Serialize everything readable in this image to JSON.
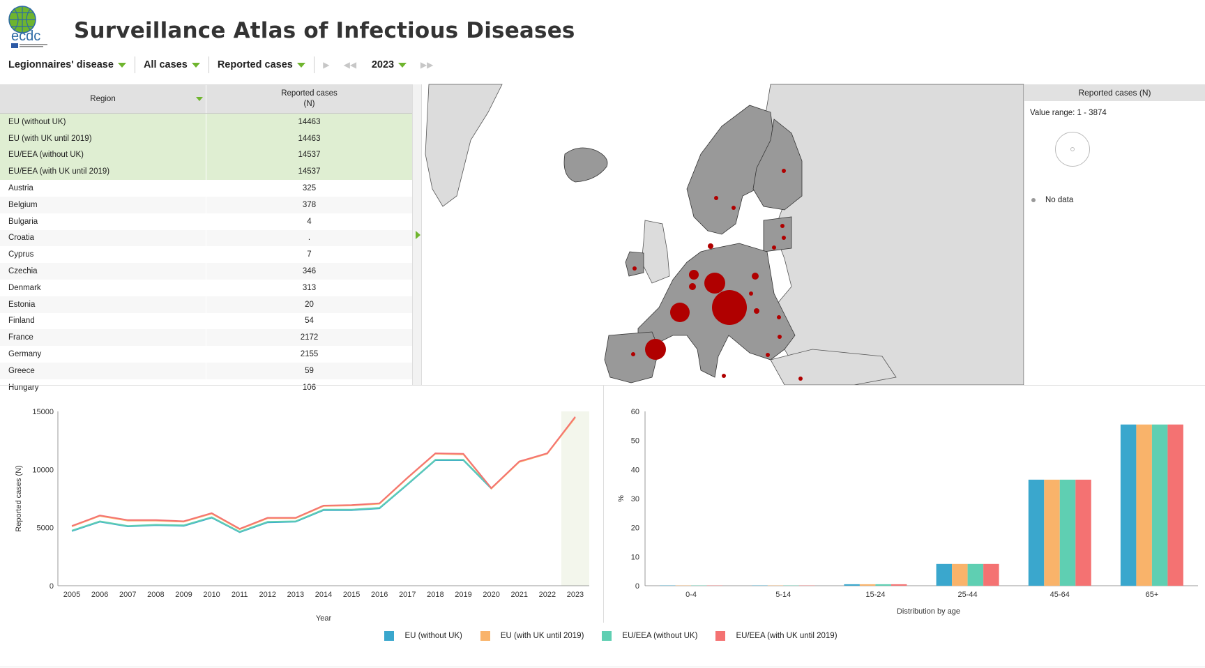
{
  "header": {
    "title": "Surveillance Atlas of Infectious Diseases",
    "logo_text": "ecdc"
  },
  "toolbar": {
    "disease": "Legionnaires' disease",
    "case_type": "All cases",
    "measure": "Reported cases",
    "year": "2023"
  },
  "table": {
    "col_region": "Region",
    "col_value_line1": "Reported cases",
    "col_value_line2": "(N)",
    "aggregates": [
      {
        "region": "EU (without UK)",
        "value": "14463"
      },
      {
        "region": "EU (with UK until 2019)",
        "value": "14463"
      },
      {
        "region": "EU/EEA (without UK)",
        "value": "14537"
      },
      {
        "region": "EU/EEA (with UK until 2019)",
        "value": "14537"
      }
    ],
    "rows": [
      {
        "region": "Austria",
        "value": "325"
      },
      {
        "region": "Belgium",
        "value": "378"
      },
      {
        "region": "Bulgaria",
        "value": "4"
      },
      {
        "region": "Croatia",
        "value": "."
      },
      {
        "region": "Cyprus",
        "value": "7"
      },
      {
        "region": "Czechia",
        "value": "346"
      },
      {
        "region": "Denmark",
        "value": "313"
      },
      {
        "region": "Estonia",
        "value": "20"
      },
      {
        "region": "Finland",
        "value": "54"
      },
      {
        "region": "France",
        "value": "2172"
      },
      {
        "region": "Germany",
        "value": "2155"
      },
      {
        "region": "Greece",
        "value": "59"
      },
      {
        "region": "Hungary",
        "value": "106"
      }
    ]
  },
  "map_legend": {
    "title": "Reported cases (N)",
    "range": "Value range: 1 - 3874",
    "no_data": "No data"
  },
  "colors": {
    "accent": "#6fb52e",
    "bubble": "#b00000",
    "country": "#999999",
    "land": "#dcdcdc"
  },
  "series_legend": [
    {
      "name": "EU (without UK)",
      "color": "#3aa7cd"
    },
    {
      "name": "EU (with UK until 2019)",
      "color": "#f9b36a"
    },
    {
      "name": "EU/EEA (without UK)",
      "color": "#5fcfb2"
    },
    {
      "name": "EU/EEA (with UK until 2019)",
      "color": "#f47272"
    }
  ],
  "chart_data": [
    {
      "type": "line",
      "xlabel": "Year",
      "ylabel": "Reported cases (N)",
      "x": [
        "2005",
        "2006",
        "2007",
        "2008",
        "2009",
        "2010",
        "2011",
        "2012",
        "2013",
        "2014",
        "2015",
        "2016",
        "2017",
        "2018",
        "2019",
        "2020",
        "2021",
        "2022",
        "2023"
      ],
      "ylim": [
        0,
        15000
      ],
      "yticks": [
        0,
        5000,
        10000,
        15000
      ],
      "highlight_x": "2023",
      "series": [
        {
          "name": "EU (without UK)",
          "values": [
            4700,
            5500,
            5100,
            5200,
            5150,
            5850,
            4600,
            5450,
            5500,
            6500,
            6500,
            6650,
            8700,
            10800,
            10800,
            8350,
            null,
            null,
            null
          ]
        },
        {
          "name": "EU (with UK until 2019)",
          "values": [
            5100,
            6000,
            5600,
            5600,
            5500,
            6200,
            4850,
            5800,
            5800,
            6850,
            6900,
            7050,
            9250,
            11350,
            11300,
            8350,
            10650,
            11350,
            14463
          ]
        },
        {
          "name": "EU/EEA (without UK)",
          "values": [
            4750,
            5550,
            5150,
            5250,
            5200,
            5900,
            4650,
            5500,
            5550,
            6550,
            6550,
            6700,
            8750,
            10850,
            10850,
            8400,
            null,
            null,
            null
          ]
        },
        {
          "name": "EU/EEA (with UK until 2019)",
          "values": [
            5150,
            6050,
            5650,
            5650,
            5550,
            6250,
            4900,
            5850,
            5850,
            6900,
            6950,
            7100,
            9300,
            11400,
            11350,
            8400,
            10700,
            11400,
            14537
          ]
        }
      ]
    },
    {
      "type": "bar",
      "xlabel": "Distribution by age",
      "ylabel": "%",
      "categories": [
        "0-4",
        "5-14",
        "15-24",
        "25-44",
        "45-64",
        "65+"
      ],
      "ylim": [
        0,
        60
      ],
      "yticks": [
        0,
        10,
        20,
        30,
        40,
        50,
        60
      ],
      "series": [
        {
          "name": "EU (without UK)",
          "values": [
            0.1,
            0.1,
            0.5,
            7.5,
            36.5,
            55.5
          ]
        },
        {
          "name": "EU (with UK until 2019)",
          "values": [
            0.1,
            0.1,
            0.5,
            7.5,
            36.5,
            55.5
          ]
        },
        {
          "name": "EU/EEA (without UK)",
          "values": [
            0.1,
            0.1,
            0.5,
            7.5,
            36.5,
            55.5
          ]
        },
        {
          "name": "EU/EEA (with UK until 2019)",
          "values": [
            0.1,
            0.1,
            0.5,
            7.5,
            36.5,
            55.5
          ]
        }
      ]
    }
  ]
}
